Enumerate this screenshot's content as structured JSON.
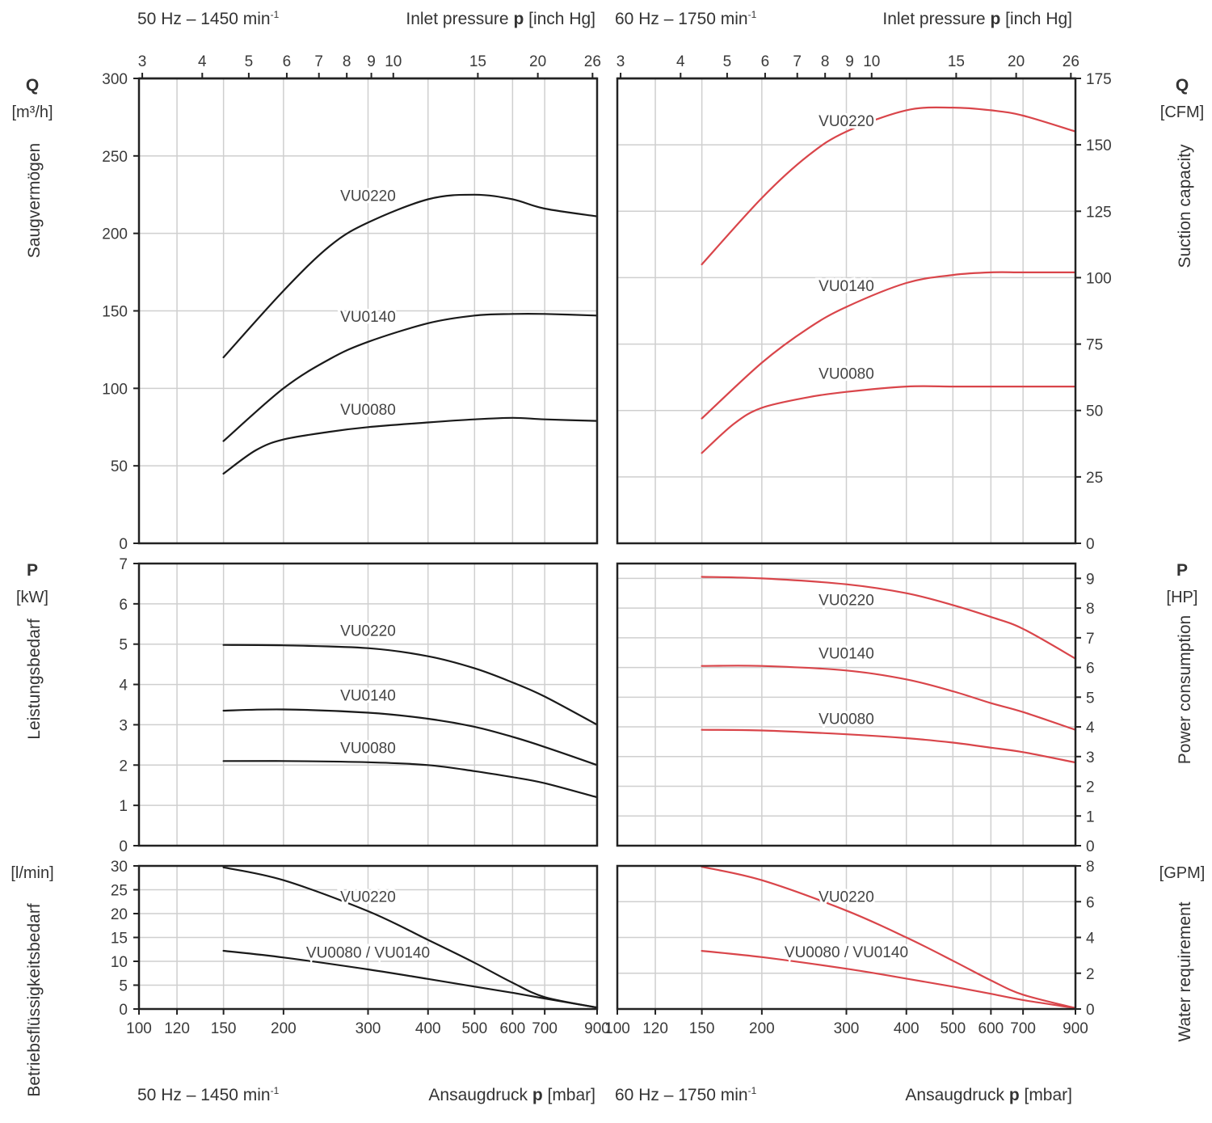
{
  "page": {
    "left_freq": "50 Hz – 1450 min",
    "right_freq": "60 Hz – 1750 min",
    "freq_superscript": "-1",
    "inlet_label": "Inlet pressure",
    "inlet_unit": "[inch Hg]",
    "bottom_label": "Ansaugdruck",
    "bottom_unit": "[mbar]",
    "p_symbol": "p",
    "left_q_symbol": "Q",
    "left_q_unit": "[m³/h]",
    "left_q_title": "Saugvermögen",
    "left_p_symbol": "P",
    "left_p_unit": "[kW]",
    "left_p_title": "Leistungsbedarf",
    "left_w_unit": "[l/min]",
    "left_w_title": "Betriebsflüssigkeitsbedarf",
    "right_q_symbol": "Q",
    "right_q_unit": "[CFM]",
    "right_q_title": "Suction capacity",
    "right_p_symbol": "P",
    "right_p_unit": "[HP]",
    "right_p_title": "Power consumption",
    "right_w_unit": "[GPM]",
    "right_w_title": "Water requirement"
  },
  "colors": {
    "left_curves": "#1a1a1a",
    "right_curves": "#d9454a",
    "grid": "#cfcfcf",
    "frame": "#222222"
  },
  "chart_data": {
    "type": "line",
    "x_scale": "log",
    "x_unit": "mbar",
    "x_ticks_mbar": [
      100,
      120,
      150,
      200,
      300,
      400,
      500,
      600,
      700,
      900
    ],
    "x_tick_labels": [
      "100",
      "120",
      "150",
      "200",
      "300",
      "400",
      "500",
      "600",
      "700",
      "900"
    ],
    "inch_hg_ticks": [
      3,
      4,
      5,
      6,
      7,
      8,
      9,
      10,
      15,
      20,
      26
    ],
    "inch_hg_tick_labels": [
      "3",
      "4",
      "5",
      "6",
      "7",
      "8",
      "9",
      "10",
      "15",
      "20",
      "26"
    ],
    "x_range_mbar": [
      100,
      900
    ],
    "grid": true,
    "panels": [
      {
        "id": "q50",
        "ylim": [
          0,
          300
        ],
        "y_ticks": [
          0,
          50,
          100,
          150,
          200,
          250,
          300
        ],
        "y_tick_labels": [
          "0",
          "50",
          "100",
          "150",
          "200",
          "250",
          "300"
        ],
        "series": [
          {
            "name": "VU0220",
            "x": [
              150,
              200,
              250,
              300,
              400,
              500,
              600,
              700,
              900
            ],
            "y": [
              120,
              163,
              192,
              207,
              222,
              225,
              222,
              216,
              211
            ]
          },
          {
            "name": "VU0140",
            "x": [
              150,
              200,
              250,
              300,
              400,
              500,
              600,
              700,
              900
            ],
            "y": [
              66,
              100,
              119,
              130,
              142,
              147,
              148,
              148,
              147
            ]
          },
          {
            "name": "VU0080",
            "x": [
              150,
              175,
              200,
              250,
              300,
              400,
              500,
              600,
              700,
              900
            ],
            "y": [
              45,
              60,
              67,
              72,
              75,
              78,
              80,
              81,
              80,
              79
            ]
          }
        ],
        "labels": [
          {
            "text": "VU0220",
            "x": 300,
            "y": 221
          },
          {
            "text": "VU0140",
            "x": 300,
            "y": 143
          },
          {
            "text": "VU0080",
            "x": 300,
            "y": 83
          }
        ]
      },
      {
        "id": "q60",
        "ylim": [
          0,
          175
        ],
        "y_ticks": [
          0,
          25,
          50,
          75,
          100,
          125,
          150,
          175
        ],
        "y_tick_labels": [
          "0",
          "25",
          "50",
          "75",
          "100",
          "125",
          "150",
          "175"
        ],
        "series": [
          {
            "name": "VU0220",
            "x": [
              150,
              200,
              250,
              300,
              400,
              500,
              600,
              700,
              900
            ],
            "y": [
              105,
              130,
              146,
              155,
              163,
              164,
              163,
              161,
              155
            ]
          },
          {
            "name": "VU0140",
            "x": [
              150,
              200,
              250,
              300,
              400,
              500,
              600,
              700,
              900
            ],
            "y": [
              47,
              68,
              81,
              89,
              98,
              101,
              102,
              102,
              102
            ]
          },
          {
            "name": "VU0080",
            "x": [
              150,
              175,
              200,
              250,
              300,
              400,
              500,
              600,
              700,
              900
            ],
            "y": [
              34,
              45,
              51,
              55,
              57,
              59,
              59,
              59,
              59,
              59
            ]
          }
        ],
        "labels": [
          {
            "text": "VU0220",
            "x": 300,
            "y": 157
          },
          {
            "text": "VU0140",
            "x": 300,
            "y": 95
          },
          {
            "text": "VU0080",
            "x": 300,
            "y": 62
          }
        ]
      },
      {
        "id": "p50",
        "ylim": [
          0,
          7
        ],
        "y_ticks": [
          0,
          1,
          2,
          3,
          4,
          5,
          6,
          7
        ],
        "y_tick_labels": [
          "0",
          "1",
          "2",
          "3",
          "4",
          "5",
          "6",
          "7"
        ],
        "series": [
          {
            "name": "VU0220",
            "x": [
              150,
              200,
              300,
              400,
              500,
              600,
              700,
              900
            ],
            "y": [
              4.98,
              4.97,
              4.9,
              4.7,
              4.4,
              4.05,
              3.7,
              3.0
            ]
          },
          {
            "name": "VU0140",
            "x": [
              150,
              200,
              300,
              400,
              500,
              600,
              700,
              900
            ],
            "y": [
              3.35,
              3.38,
              3.3,
              3.15,
              2.95,
              2.7,
              2.45,
              2.0
            ]
          },
          {
            "name": "VU0080",
            "x": [
              150,
              200,
              300,
              400,
              500,
              600,
              700,
              900
            ],
            "y": [
              2.1,
              2.1,
              2.07,
              2.0,
              1.85,
              1.7,
              1.55,
              1.2
            ]
          }
        ],
        "labels": [
          {
            "text": "VU0220",
            "x": 300,
            "y": 5.2
          },
          {
            "text": "VU0140",
            "x": 300,
            "y": 3.6
          },
          {
            "text": "VU0080",
            "x": 300,
            "y": 2.3
          }
        ]
      },
      {
        "id": "p60",
        "ylim": [
          0,
          9.5
        ],
        "y_ticks": [
          0,
          1,
          2,
          3,
          4,
          5,
          6,
          7,
          8,
          9
        ],
        "y_tick_labels": [
          "0",
          "1",
          "2",
          "3",
          "4",
          "5",
          "6",
          "7",
          "8",
          "9"
        ],
        "series": [
          {
            "name": "VU0220",
            "x": [
              150,
              200,
              300,
              400,
              500,
              600,
              700,
              900
            ],
            "y": [
              9.05,
              9.0,
              8.8,
              8.5,
              8.1,
              7.7,
              7.3,
              6.3
            ]
          },
          {
            "name": "VU0140",
            "x": [
              150,
              200,
              300,
              400,
              500,
              600,
              700,
              900
            ],
            "y": [
              6.05,
              6.05,
              5.9,
              5.6,
              5.2,
              4.8,
              4.5,
              3.9
            ]
          },
          {
            "name": "VU0080",
            "x": [
              150,
              200,
              300,
              400,
              500,
              600,
              700,
              900
            ],
            "y": [
              3.9,
              3.88,
              3.75,
              3.62,
              3.47,
              3.3,
              3.15,
              2.8
            ]
          }
        ],
        "labels": [
          {
            "text": "VU0220",
            "x": 300,
            "y": 8.1
          },
          {
            "text": "VU0140",
            "x": 300,
            "y": 6.3
          },
          {
            "text": "VU0080",
            "x": 300,
            "y": 4.1
          }
        ]
      },
      {
        "id": "w50",
        "ylim": [
          0,
          30
        ],
        "y_ticks": [
          0,
          5,
          10,
          15,
          20,
          25,
          30
        ],
        "y_tick_labels": [
          "0",
          "5",
          "10",
          "15",
          "20",
          "25",
          "30"
        ],
        "series": [
          {
            "name": "VU0220",
            "x": [
              150,
              200,
              300,
              400,
              500,
              600,
              700,
              900
            ],
            "y": [
              29.7,
              27.0,
              20.5,
              14.5,
              9.7,
              5.5,
              2.5,
              0.3
            ]
          },
          {
            "name": "VU0080 / VU0140",
            "x": [
              150,
              200,
              300,
              400,
              500,
              600,
              700,
              900
            ],
            "y": [
              12.2,
              10.8,
              8.3,
              6.3,
              4.7,
              3.4,
              2.2,
              0.3
            ]
          }
        ],
        "labels": [
          {
            "text": "VU0220",
            "x": 300,
            "y": 22.5
          },
          {
            "text": "VU0080 / VU0140",
            "x": 300,
            "y": 10.8
          }
        ]
      },
      {
        "id": "w60",
        "ylim": [
          0,
          8
        ],
        "y_ticks": [
          0,
          2,
          4,
          6,
          8
        ],
        "y_tick_labels": [
          "0",
          "2",
          "4",
          "6",
          "8"
        ],
        "series": [
          {
            "name": "VU0220",
            "x": [
              150,
              200,
              300,
              400,
              500,
              600,
              700,
              900
            ],
            "y": [
              7.95,
              7.2,
              5.5,
              4.0,
              2.7,
              1.6,
              0.8,
              0.05
            ]
          },
          {
            "name": "VU0080 / VU0140",
            "x": [
              150,
              200,
              300,
              400,
              500,
              600,
              700,
              900
            ],
            "y": [
              3.25,
              2.9,
              2.25,
              1.7,
              1.25,
              0.85,
              0.5,
              0.05
            ]
          }
        ],
        "labels": [
          {
            "text": "VU0220",
            "x": 300,
            "y": 6.0
          },
          {
            "text": "VU0080 / VU0140",
            "x": 300,
            "y": 2.9
          }
        ]
      }
    ]
  }
}
